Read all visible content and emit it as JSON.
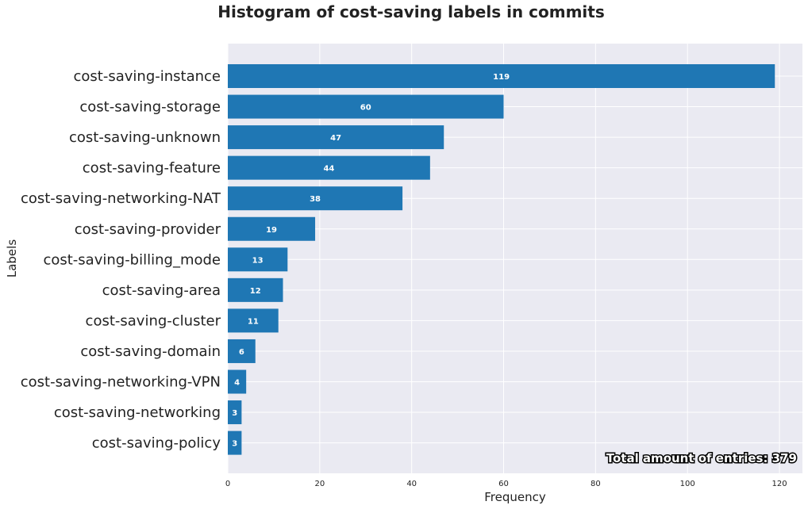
{
  "chart_data": {
    "type": "bar",
    "orientation": "horizontal",
    "title": "Histogram of cost-saving labels in commits",
    "xlabel": "Frequency",
    "ylabel": "Labels",
    "xlim": [
      0,
      125
    ],
    "xticks": [
      0,
      20,
      40,
      60,
      80,
      100,
      120
    ],
    "categories": [
      "cost-saving-instance",
      "cost-saving-storage",
      "cost-saving-unknown",
      "cost-saving-feature",
      "cost-saving-networking-NAT",
      "cost-saving-provider",
      "cost-saving-billing_mode",
      "cost-saving-area",
      "cost-saving-cluster",
      "cost-saving-domain",
      "cost-saving-networking-VPN",
      "cost-saving-networking",
      "cost-saving-policy"
    ],
    "values": [
      119,
      60,
      47,
      44,
      38,
      19,
      13,
      12,
      11,
      6,
      4,
      3,
      3
    ],
    "annotation": "Total amount of entries: 379",
    "grid": true,
    "colors": {
      "bar": "#1f77b4",
      "background": "#eaeaf2",
      "grid": "#ffffff"
    }
  }
}
